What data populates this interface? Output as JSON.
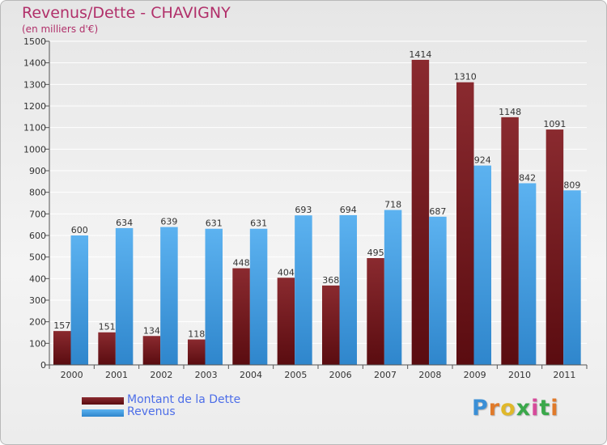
{
  "chart_data": {
    "type": "bar",
    "title": "Revenus/Dette - CHAVIGNY",
    "subtitle": "(en milliers d'€)",
    "categories": [
      "2000",
      "2001",
      "2002",
      "2003",
      "2004",
      "2005",
      "2006",
      "2007",
      "2008",
      "2009",
      "2010",
      "2011"
    ],
    "series": [
      {
        "name": "Montant de la Dette",
        "color": "#7a1d22",
        "values": [
          157,
          151,
          134,
          118,
          448,
          404,
          368,
          495,
          1414,
          1310,
          1148,
          1091
        ]
      },
      {
        "name": "Revenus",
        "color": "#4aa2e6",
        "values": [
          600,
          634,
          639,
          631,
          631,
          693,
          694,
          718,
          687,
          924,
          842,
          809
        ]
      }
    ],
    "yticks": [
      0,
      100,
      200,
      300,
      400,
      500,
      600,
      700,
      800,
      900,
      1000,
      1100,
      1200,
      1300,
      1400,
      1500
    ],
    "ylim": [
      0,
      1500
    ],
    "grid": true,
    "legend": "bottom-left"
  },
  "logo": {
    "letters": [
      "P",
      "r",
      "o",
      "x",
      "i",
      "t",
      "i"
    ],
    "colors": [
      "#3a8fd6",
      "#e07a2a",
      "#e0b82a",
      "#3aa84a",
      "#d64a9a",
      "#3aa84a",
      "#e07a2a"
    ]
  }
}
